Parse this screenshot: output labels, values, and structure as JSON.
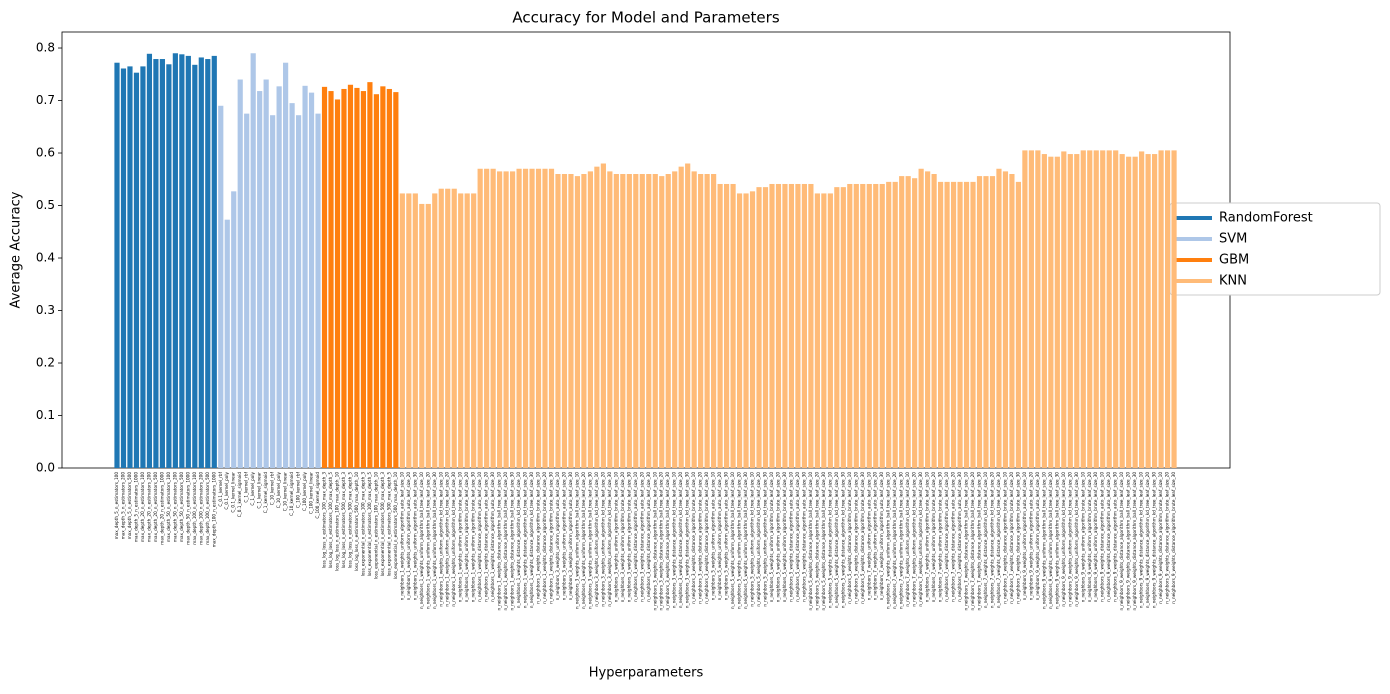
{
  "chart_data": {
    "type": "bar",
    "title": "Accuracy for Model and Parameters",
    "xlabel": "Hyperparameters",
    "ylabel": "Average Accuracy",
    "ylim": [
      0,
      0.8305
    ],
    "yticks": [
      {
        "value": 0,
        "label": "0.0"
      },
      0.1,
      0.2,
      0.3,
      0.4,
      0.5,
      0.6,
      0.7,
      0.8
    ],
    "legend": "right",
    "series": [
      {
        "name": "RandomForest",
        "color": "#1f77b4",
        "categories": [
          "max_depth_5_n_estimators_100",
          "max_depth_5_n_estimators_200",
          "max_depth_5_n_estimators_500",
          "max_depth_5_n_estimators_1000",
          "max_depth_20_n_estimators_100",
          "max_depth_20_n_estimators_200",
          "max_depth_20_n_estimators_500",
          "max_depth_20_n_estimators_1000",
          "max_depth_50_n_estimators_100",
          "max_depth_50_n_estimators_200",
          "max_depth_50_n_estimators_500",
          "max_depth_50_n_estimators_1000",
          "max_depth_100_n_estimators_100",
          "max_depth_100_n_estimators_200",
          "max_depth_100_n_estimators_500",
          "max_depth_100_n_estimators_1000"
        ],
        "values": [
          0.772,
          0.761,
          0.765,
          0.753,
          0.765,
          0.789,
          0.779,
          0.779,
          0.769,
          0.79,
          0.788,
          0.785,
          0.768,
          0.782,
          0.779,
          0.785
        ]
      },
      {
        "name": "SVM",
        "color": "#aec7e8",
        "categories": [
          "C_0.1_kernel_rbf",
          "C_0.1_kernel_poly",
          "C_0.1_kernel_linear",
          "C_0.1_kernel_sigmoid",
          "C_1_kernel_rbf",
          "C_1_kernel_poly",
          "C_1_kernel_linear",
          "C_1_kernel_sigmoid",
          "C_10_kernel_rbf",
          "C_10_kernel_poly",
          "C_10_kernel_linear",
          "C_10_kernel_sigmoid",
          "C_100_kernel_rbf",
          "C_100_kernel_poly",
          "C_100_kernel_linear",
          "C_100_kernel_sigmoid"
        ],
        "values": [
          0.69,
          0.473,
          0.527,
          0.74,
          0.675,
          0.79,
          0.718,
          0.74,
          0.672,
          0.727,
          0.772,
          0.695,
          0.672,
          0.728,
          0.715,
          0.675
        ]
      },
      {
        "name": "GBM",
        "color": "#ff7f0e",
        "categories": [
          "loss_log_loss_n_estimators_100_max_depth_3",
          "loss_log_loss_n_estimators_100_max_depth_5",
          "loss_log_loss_n_estimators_100_max_depth_10",
          "loss_log_loss_n_estimators_500_max_depth_3",
          "loss_log_loss_n_estimators_500_max_depth_5",
          "loss_log_loss_n_estimators_500_max_depth_10",
          "loss_exponential_n_estimators_100_max_depth_3",
          "loss_exponential_n_estimators_100_max_depth_5",
          "loss_exponential_n_estimators_100_max_depth_10",
          "loss_exponential_n_estimators_500_max_depth_3",
          "loss_exponential_n_estimators_500_max_depth_5",
          "loss_exponential_n_estimators_500_max_depth_10"
        ],
        "values": [
          0.726,
          0.718,
          0.702,
          0.722,
          0.73,
          0.724,
          0.718,
          0.735,
          0.712,
          0.727,
          0.722,
          0.716
        ]
      },
      {
        "name": "KNN",
        "color": "#ffbb78",
        "categories": [
          "n_neighbors_1_weights_uniform_algorithm_auto_leaf_size_10",
          "n_neighbors_1_weights_uniform_algorithm_auto_leaf_size_20",
          "n_neighbors_1_weights_uniform_algorithm_auto_leaf_size_30",
          "n_neighbors_1_weights_uniform_algorithm_ball_tree_leaf_size_10",
          "n_neighbors_1_weights_uniform_algorithm_ball_tree_leaf_size_20",
          "n_neighbors_1_weights_uniform_algorithm_ball_tree_leaf_size_30",
          "n_neighbors_1_weights_uniform_algorithm_kd_tree_leaf_size_10",
          "n_neighbors_1_weights_uniform_algorithm_kd_tree_leaf_size_20",
          "n_neighbors_1_weights_uniform_algorithm_kd_tree_leaf_size_30",
          "n_neighbors_1_weights_uniform_algorithm_brute_leaf_size_10",
          "n_neighbors_1_weights_uniform_algorithm_brute_leaf_size_20",
          "n_neighbors_1_weights_uniform_algorithm_brute_leaf_size_30",
          "n_neighbors_1_weights_distance_algorithm_auto_leaf_size_10",
          "n_neighbors_1_weights_distance_algorithm_auto_leaf_size_20",
          "n_neighbors_1_weights_distance_algorithm_auto_leaf_size_30",
          "n_neighbors_1_weights_distance_algorithm_ball_tree_leaf_size_10",
          "n_neighbors_1_weights_distance_algorithm_ball_tree_leaf_size_20",
          "n_neighbors_1_weights_distance_algorithm_ball_tree_leaf_size_30",
          "n_neighbors_1_weights_distance_algorithm_kd_tree_leaf_size_10",
          "n_neighbors_1_weights_distance_algorithm_kd_tree_leaf_size_20",
          "n_neighbors_1_weights_distance_algorithm_kd_tree_leaf_size_30",
          "n_neighbors_1_weights_distance_algorithm_brute_leaf_size_10",
          "n_neighbors_1_weights_distance_algorithm_brute_leaf_size_20",
          "n_neighbors_1_weights_distance_algorithm_brute_leaf_size_30",
          "n_neighbors_3_weights_uniform_algorithm_auto_leaf_size_10",
          "n_neighbors_3_weights_uniform_algorithm_auto_leaf_size_20",
          "n_neighbors_3_weights_uniform_algorithm_auto_leaf_size_30",
          "n_neighbors_3_weights_uniform_algorithm_ball_tree_leaf_size_10",
          "n_neighbors_3_weights_uniform_algorithm_ball_tree_leaf_size_20",
          "n_neighbors_3_weights_uniform_algorithm_ball_tree_leaf_size_30",
          "n_neighbors_3_weights_uniform_algorithm_kd_tree_leaf_size_10",
          "n_neighbors_3_weights_uniform_algorithm_kd_tree_leaf_size_20",
          "n_neighbors_3_weights_uniform_algorithm_kd_tree_leaf_size_30",
          "n_neighbors_3_weights_uniform_algorithm_brute_leaf_size_10",
          "n_neighbors_3_weights_uniform_algorithm_brute_leaf_size_20",
          "n_neighbors_3_weights_uniform_algorithm_brute_leaf_size_30",
          "n_neighbors_3_weights_distance_algorithm_auto_leaf_size_10",
          "n_neighbors_3_weights_distance_algorithm_auto_leaf_size_20",
          "n_neighbors_3_weights_distance_algorithm_auto_leaf_size_30",
          "n_neighbors_3_weights_distance_algorithm_ball_tree_leaf_size_10",
          "n_neighbors_3_weights_distance_algorithm_ball_tree_leaf_size_20",
          "n_neighbors_3_weights_distance_algorithm_ball_tree_leaf_size_30",
          "n_neighbors_3_weights_distance_algorithm_kd_tree_leaf_size_10",
          "n_neighbors_3_weights_distance_algorithm_kd_tree_leaf_size_20",
          "n_neighbors_3_weights_distance_algorithm_kd_tree_leaf_size_30",
          "n_neighbors_3_weights_distance_algorithm_brute_leaf_size_10",
          "n_neighbors_3_weights_distance_algorithm_brute_leaf_size_20",
          "n_neighbors_3_weights_distance_algorithm_brute_leaf_size_30",
          "n_neighbors_5_weights_uniform_algorithm_auto_leaf_size_10",
          "n_neighbors_5_weights_uniform_algorithm_auto_leaf_size_20",
          "n_neighbors_5_weights_uniform_algorithm_auto_leaf_size_30",
          "n_neighbors_5_weights_uniform_algorithm_ball_tree_leaf_size_10",
          "n_neighbors_5_weights_uniform_algorithm_ball_tree_leaf_size_20",
          "n_neighbors_5_weights_uniform_algorithm_ball_tree_leaf_size_30",
          "n_neighbors_5_weights_uniform_algorithm_kd_tree_leaf_size_10",
          "n_neighbors_5_weights_uniform_algorithm_kd_tree_leaf_size_20",
          "n_neighbors_5_weights_uniform_algorithm_kd_tree_leaf_size_30",
          "n_neighbors_5_weights_uniform_algorithm_brute_leaf_size_10",
          "n_neighbors_5_weights_uniform_algorithm_brute_leaf_size_20",
          "n_neighbors_5_weights_uniform_algorithm_brute_leaf_size_30",
          "n_neighbors_5_weights_distance_algorithm_auto_leaf_size_10",
          "n_neighbors_5_weights_distance_algorithm_auto_leaf_size_20",
          "n_neighbors_5_weights_distance_algorithm_auto_leaf_size_30",
          "n_neighbors_5_weights_distance_algorithm_ball_tree_leaf_size_10",
          "n_neighbors_5_weights_distance_algorithm_ball_tree_leaf_size_20",
          "n_neighbors_5_weights_distance_algorithm_ball_tree_leaf_size_30",
          "n_neighbors_5_weights_distance_algorithm_kd_tree_leaf_size_10",
          "n_neighbors_5_weights_distance_algorithm_kd_tree_leaf_size_20",
          "n_neighbors_5_weights_distance_algorithm_kd_tree_leaf_size_30",
          "n_neighbors_5_weights_distance_algorithm_brute_leaf_size_10",
          "n_neighbors_5_weights_distance_algorithm_brute_leaf_size_20",
          "n_neighbors_5_weights_distance_algorithm_brute_leaf_size_30",
          "n_neighbors_7_weights_uniform_algorithm_auto_leaf_size_10",
          "n_neighbors_7_weights_uniform_algorithm_auto_leaf_size_20",
          "n_neighbors_7_weights_uniform_algorithm_auto_leaf_size_30",
          "n_neighbors_7_weights_uniform_algorithm_ball_tree_leaf_size_10",
          "n_neighbors_7_weights_uniform_algorithm_ball_tree_leaf_size_20",
          "n_neighbors_7_weights_uniform_algorithm_ball_tree_leaf_size_30",
          "n_neighbors_7_weights_uniform_algorithm_kd_tree_leaf_size_10",
          "n_neighbors_7_weights_uniform_algorithm_kd_tree_leaf_size_20",
          "n_neighbors_7_weights_uniform_algorithm_kd_tree_leaf_size_30",
          "n_neighbors_7_weights_uniform_algorithm_brute_leaf_size_10",
          "n_neighbors_7_weights_uniform_algorithm_brute_leaf_size_20",
          "n_neighbors_7_weights_uniform_algorithm_brute_leaf_size_30",
          "n_neighbors_7_weights_distance_algorithm_auto_leaf_size_10",
          "n_neighbors_7_weights_distance_algorithm_auto_leaf_size_20",
          "n_neighbors_7_weights_distance_algorithm_auto_leaf_size_30",
          "n_neighbors_7_weights_distance_algorithm_ball_tree_leaf_size_10",
          "n_neighbors_7_weights_distance_algorithm_ball_tree_leaf_size_20",
          "n_neighbors_7_weights_distance_algorithm_ball_tree_leaf_size_30",
          "n_neighbors_7_weights_distance_algorithm_kd_tree_leaf_size_10",
          "n_neighbors_7_weights_distance_algorithm_kd_tree_leaf_size_20",
          "n_neighbors_7_weights_distance_algorithm_kd_tree_leaf_size_30",
          "n_neighbors_7_weights_distance_algorithm_brute_leaf_size_10",
          "n_neighbors_7_weights_distance_algorithm_brute_leaf_size_20",
          "n_neighbors_7_weights_distance_algorithm_brute_leaf_size_30",
          "n_neighbors_9_weights_uniform_algorithm_auto_leaf_size_10",
          "n_neighbors_9_weights_uniform_algorithm_auto_leaf_size_20",
          "n_neighbors_9_weights_uniform_algorithm_auto_leaf_size_30",
          "n_neighbors_9_weights_uniform_algorithm_ball_tree_leaf_size_10",
          "n_neighbors_9_weights_uniform_algorithm_ball_tree_leaf_size_20",
          "n_neighbors_9_weights_uniform_algorithm_ball_tree_leaf_size_30",
          "n_neighbors_9_weights_uniform_algorithm_kd_tree_leaf_size_10",
          "n_neighbors_9_weights_uniform_algorithm_kd_tree_leaf_size_20",
          "n_neighbors_9_weights_uniform_algorithm_kd_tree_leaf_size_30",
          "n_neighbors_9_weights_uniform_algorithm_brute_leaf_size_10",
          "n_neighbors_9_weights_uniform_algorithm_brute_leaf_size_20",
          "n_neighbors_9_weights_uniform_algorithm_brute_leaf_size_30",
          "n_neighbors_9_weights_distance_algorithm_auto_leaf_size_10",
          "n_neighbors_9_weights_distance_algorithm_auto_leaf_size_20",
          "n_neighbors_9_weights_distance_algorithm_auto_leaf_size_30",
          "n_neighbors_9_weights_distance_algorithm_ball_tree_leaf_size_10",
          "n_neighbors_9_weights_distance_algorithm_ball_tree_leaf_size_20",
          "n_neighbors_9_weights_distance_algorithm_ball_tree_leaf_size_30",
          "n_neighbors_9_weights_distance_algorithm_kd_tree_leaf_size_10",
          "n_neighbors_9_weights_distance_algorithm_kd_tree_leaf_size_20",
          "n_neighbors_9_weights_distance_algorithm_kd_tree_leaf_size_30",
          "n_neighbors_9_weights_distance_algorithm_brute_leaf_size_10",
          "n_neighbors_9_weights_distance_algorithm_brute_leaf_size_20",
          "n_neighbors_9_weights_distance_algorithm_brute_leaf_size_30"
        ],
        "values": [
          0.523,
          0.523,
          0.523,
          0.503,
          0.503,
          0.523,
          0.532,
          0.532,
          0.532,
          0.523,
          0.523,
          0.523,
          0.57,
          0.57,
          0.57,
          0.565,
          0.565,
          0.565,
          0.57,
          0.57,
          0.57,
          0.57,
          0.57,
          0.57,
          0.56,
          0.56,
          0.56,
          0.556,
          0.56,
          0.565,
          0.574,
          0.58,
          0.565,
          0.56,
          0.56,
          0.56,
          0.56,
          0.56,
          0.56,
          0.56,
          0.556,
          0.56,
          0.565,
          0.574,
          0.58,
          0.565,
          0.56,
          0.56,
          0.56,
          0.541,
          0.541,
          0.541,
          0.523,
          0.523,
          0.527,
          0.535,
          0.535,
          0.541,
          0.541,
          0.541,
          0.541,
          0.541,
          0.541,
          0.541,
          0.523,
          0.523,
          0.523,
          0.535,
          0.535,
          0.541,
          0.541,
          0.541,
          0.541,
          0.541,
          0.541,
          0.545,
          0.545,
          0.556,
          0.556,
          0.552,
          0.57,
          0.565,
          0.56,
          0.545,
          0.545,
          0.545,
          0.545,
          0.545,
          0.545,
          0.556,
          0.556,
          0.556,
          0.57,
          0.565,
          0.56,
          0.545,
          0.605,
          0.605,
          0.605,
          0.598,
          0.593,
          0.593,
          0.603,
          0.598,
          0.598,
          0.605,
          0.605,
          0.605,
          0.605,
          0.605,
          0.605,
          0.598,
          0.593,
          0.593,
          0.603,
          0.598,
          0.598,
          0.605,
          0.605,
          0.605
        ]
      }
    ]
  }
}
